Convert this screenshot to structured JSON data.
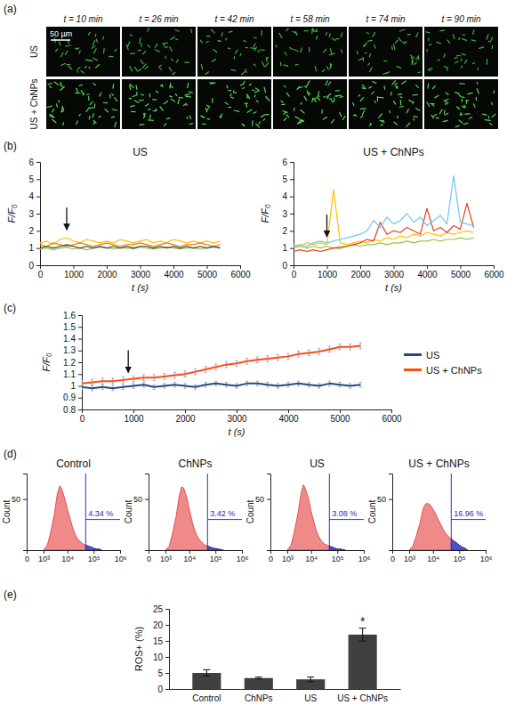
{
  "image_panel": {
    "panel_label": "(a)",
    "columns": [
      "t = 10 min",
      "t = 26 min",
      "t = 42 min",
      "t = 58 min",
      "t = 74 min",
      "t = 90 min"
    ],
    "rows": [
      "US",
      "US + ChNPs"
    ],
    "scale_bar": "50 µm"
  },
  "chart_data": [
    {
      "type": "line",
      "panel_label": "(b)",
      "title": "US",
      "x_label": "t (s)",
      "y_label": "F/F₀",
      "x": [
        0,
        200,
        400,
        600,
        800,
        1000,
        1200,
        1400,
        1600,
        1800,
        2000,
        2200,
        2400,
        2600,
        2800,
        3000,
        3200,
        3400,
        3600,
        3800,
        4000,
        4200,
        4400,
        4600,
        4800,
        5000,
        5200,
        5400
      ],
      "series": [
        {
          "color": "#ffc000",
          "values": [
            1.3,
            1.4,
            1.2,
            1.5,
            1.6,
            1.4,
            1.3,
            1.5,
            1.4,
            1.3,
            1.4,
            1.3,
            1.5,
            1.4,
            1.3,
            1.4,
            1.5,
            1.3,
            1.4,
            1.3,
            1.5,
            1.4,
            1.3,
            1.4,
            1.3,
            1.4,
            1.3,
            1.4
          ]
        },
        {
          "color": "#f07c1c",
          "values": [
            1.2,
            1.1,
            1.3,
            1.2,
            1.1,
            1.2,
            1.3,
            1.2,
            1.1,
            1.2,
            1.3,
            1.2,
            1.1,
            1.2,
            1.2,
            1.3,
            1.2,
            1.1,
            1.2,
            1.3,
            1.2,
            1.1,
            1.2,
            1.2,
            1.3,
            1.2,
            1.1,
            1.2
          ]
        },
        {
          "color": "#92c83e",
          "values": [
            0.95,
            1.0,
            0.9,
            1.0,
            1.05,
            0.95,
            1.0,
            0.9,
            1.0,
            1.05,
            1.0,
            0.95,
            1.0,
            1.0,
            0.95,
            1.05,
            1.0,
            0.95,
            1.0,
            1.05,
            1.0,
            0.95,
            1.0,
            1.0,
            0.95,
            1.0,
            1.05,
            1.0
          ]
        },
        {
          "color": "#404040",
          "values": [
            1.0,
            1.1,
            1.0,
            1.1,
            1.2,
            1.1,
            1.0,
            1.1,
            1.0,
            1.1,
            1.0,
            1.1,
            1.0,
            1.1,
            1.0,
            1.1,
            1.1,
            1.0,
            1.1,
            1.0,
            1.1,
            1.0,
            1.1,
            1.0,
            1.1,
            1.0,
            1.1,
            1.0
          ]
        }
      ],
      "xlim": [
        0,
        6000
      ],
      "xticks": [
        0,
        1000,
        2000,
        3000,
        4000,
        5000,
        6000
      ],
      "ylim": [
        0,
        6
      ],
      "yticks": [
        0,
        1,
        2,
        3,
        4,
        5,
        6
      ],
      "arrow": {
        "x": 800,
        "y": 1.9
      }
    },
    {
      "type": "line",
      "title": "US + ChNPs",
      "x_label": "t (s)",
      "y_label": "F/F₀",
      "x": [
        0,
        200,
        400,
        600,
        800,
        1000,
        1200,
        1400,
        1600,
        1800,
        2000,
        2200,
        2400,
        2600,
        2800,
        3000,
        3200,
        3400,
        3600,
        3800,
        4000,
        4200,
        4400,
        4600,
        4800,
        5000,
        5200,
        5400
      ],
      "series": [
        {
          "color": "#92c83e",
          "values": [
            1.0,
            1.1,
            1.0,
            1.1,
            1.0,
            1.1,
            1.0,
            1.1,
            1.1,
            1.2,
            1.1,
            1.2,
            1.2,
            1.3,
            1.2,
            1.3,
            1.3,
            1.4,
            1.3,
            1.4,
            1.4,
            1.5,
            1.4,
            1.5,
            1.5,
            1.6,
            1.5,
            1.6
          ]
        },
        {
          "color": "#ffc000",
          "values": [
            1.2,
            1.1,
            1.3,
            1.2,
            1.3,
            1.2,
            4.4,
            1.3,
            1.2,
            1.3,
            1.4,
            1.3,
            1.5,
            1.4,
            1.6,
            1.5,
            1.7,
            1.6,
            1.8,
            1.7,
            1.9,
            1.8,
            1.7,
            1.9,
            1.8,
            1.9,
            2.0,
            1.9
          ]
        },
        {
          "color": "#e8401c",
          "values": [
            0.8,
            0.9,
            0.8,
            0.9,
            0.8,
            0.9,
            1.0,
            1.0,
            1.1,
            1.2,
            1.3,
            1.5,
            1.4,
            2.5,
            1.8,
            2.0,
            1.9,
            2.2,
            2.0,
            1.8,
            3.3,
            2.0,
            2.2,
            1.9,
            2.3,
            2.1,
            3.6,
            2.2
          ]
        },
        {
          "color": "#6ec6f0",
          "values": [
            1.1,
            1.2,
            1.1,
            1.3,
            1.4,
            1.3,
            1.4,
            1.5,
            1.6,
            1.7,
            1.8,
            2.0,
            2.6,
            2.2,
            2.8,
            2.4,
            2.6,
            3.0,
            2.5,
            2.8,
            2.3,
            2.6,
            2.9,
            2.4,
            5.2,
            2.5,
            2.4,
            2.3
          ]
        }
      ],
      "xlim": [
        0,
        6000
      ],
      "xticks": [
        0,
        1000,
        2000,
        3000,
        4000,
        5000,
        6000
      ],
      "ylim": [
        0,
        6
      ],
      "yticks": [
        0,
        1,
        2,
        3,
        4,
        5,
        6
      ],
      "arrow": {
        "x": 1000,
        "y": 1.5
      }
    },
    {
      "type": "line",
      "panel_label": "(c)",
      "x_label": "t (s)",
      "y_label": "F/F₀",
      "x": [
        0,
        200,
        400,
        600,
        800,
        1000,
        1200,
        1400,
        1600,
        1800,
        2000,
        2200,
        2400,
        2600,
        2800,
        3000,
        3200,
        3400,
        3600,
        3800,
        4000,
        4200,
        4400,
        4600,
        4800,
        5000,
        5200,
        5400
      ],
      "series": [
        {
          "name": "US",
          "color": "#1f4e79",
          "values": [
            0.99,
            0.98,
            0.99,
            0.98,
            0.99,
            1.0,
            1.01,
            0.99,
            1.0,
            1.01,
            1.0,
            0.99,
            1.01,
            1.02,
            1.01,
            1.0,
            1.02,
            1.02,
            1.01,
            1.0,
            1.01,
            1.02,
            1.01,
            1.0,
            1.02,
            1.01,
            1.0,
            1.01
          ],
          "errors": [
            0.02,
            0.02,
            0.02,
            0.02,
            0.02,
            0.02,
            0.02,
            0.02,
            0.02,
            0.02,
            0.02,
            0.02,
            0.02,
            0.02,
            0.02,
            0.02,
            0.02,
            0.02,
            0.02,
            0.02,
            0.02,
            0.02,
            0.02,
            0.02,
            0.02,
            0.02,
            0.02,
            0.02
          ]
        },
        {
          "name": "US + ChNPs",
          "color": "#ff4d0a",
          "values": [
            1.02,
            1.03,
            1.04,
            1.04,
            1.05,
            1.06,
            1.07,
            1.07,
            1.08,
            1.09,
            1.1,
            1.12,
            1.14,
            1.16,
            1.18,
            1.19,
            1.21,
            1.22,
            1.23,
            1.24,
            1.25,
            1.27,
            1.28,
            1.29,
            1.31,
            1.33,
            1.33,
            1.34
          ],
          "errors": [
            0.025,
            0.025,
            0.025,
            0.025,
            0.025,
            0.025,
            0.025,
            0.025,
            0.025,
            0.025,
            0.025,
            0.025,
            0.025,
            0.025,
            0.025,
            0.025,
            0.025,
            0.025,
            0.025,
            0.025,
            0.025,
            0.025,
            0.025,
            0.025,
            0.025,
            0.025,
            0.025,
            0.025
          ]
        }
      ],
      "xlim": [
        0,
        6000
      ],
      "xticks": [
        0,
        1000,
        2000,
        3000,
        4000,
        5000,
        6000
      ],
      "ylim": [
        0.8,
        1.6
      ],
      "yticks": [
        0.8,
        0.9,
        1,
        1.1,
        1.2,
        1.3,
        1.4,
        1.5,
        1.6
      ],
      "legend": "right",
      "arrow": {
        "x": 900,
        "y": 1.09
      }
    },
    {
      "type": "area",
      "panel_label": "(d)",
      "title": "Control",
      "y_label": "Count",
      "log": "x",
      "x": [
        1000,
        1500,
        2000,
        3000,
        4000,
        5000,
        6000,
        8000,
        10000,
        13000,
        16000,
        20000,
        25000,
        32000,
        40000,
        50000,
        63000,
        80000,
        100000,
        130000,
        160000,
        200000
      ],
      "values": [
        0,
        5,
        15,
        35,
        55,
        63,
        60,
        50,
        40,
        30,
        22,
        15,
        11,
        8,
        6,
        5,
        4,
        3,
        2,
        1,
        1,
        0
      ],
      "color": "#f08a8a",
      "xlim": [
        0,
        1000000
      ],
      "xticks": [
        0,
        {
          "value": 1000,
          "label": "10³"
        },
        {
          "value": 10000,
          "label": "10⁴"
        },
        {
          "value": 100000,
          "label": "10⁵"
        },
        {
          "value": 1000000,
          "label": "10⁶"
        }
      ],
      "ylim": [
        0,
        75
      ],
      "yticks": [
        50
      ],
      "gate": 50000,
      "gate_label": "4.34 %"
    },
    {
      "type": "area",
      "title": "ChNPs",
      "y_label": "Count",
      "log": "x",
      "x": [
        1000,
        1500,
        2000,
        3000,
        4000,
        5000,
        6000,
        8000,
        10000,
        13000,
        16000,
        20000,
        25000,
        32000,
        40000,
        50000,
        63000,
        80000,
        100000,
        130000,
        160000,
        200000
      ],
      "values": [
        0,
        4,
        14,
        33,
        53,
        62,
        61,
        52,
        40,
        28,
        20,
        14,
        10,
        7,
        5,
        4,
        3,
        2,
        1.5,
        1,
        0.5,
        0
      ],
      "color": "#f08a8a",
      "xlim": [
        0,
        1000000
      ],
      "xticks": [
        0,
        {
          "value": 1000,
          "label": "10³"
        },
        {
          "value": 10000,
          "label": "10⁴"
        },
        {
          "value": 100000,
          "label": "10⁵"
        },
        {
          "value": 1000000,
          "label": "10⁶"
        }
      ],
      "ylim": [
        0,
        75
      ],
      "yticks": [
        50
      ],
      "gate": 50000,
      "gate_label": "3.42 %"
    },
    {
      "type": "area",
      "title": "US",
      "y_label": "Count",
      "log": "x",
      "x": [
        1000,
        1500,
        2000,
        3000,
        4000,
        5000,
        6000,
        8000,
        10000,
        13000,
        16000,
        20000,
        25000,
        32000,
        40000,
        50000,
        63000,
        80000,
        100000,
        130000,
        160000,
        200000
      ],
      "values": [
        0,
        5,
        16,
        36,
        56,
        64,
        60,
        50,
        38,
        27,
        19,
        13,
        9,
        6,
        5,
        4,
        3,
        2,
        1,
        1,
        0.5,
        0
      ],
      "color": "#f08a8a",
      "xlim": [
        0,
        1000000
      ],
      "xticks": [
        0,
        {
          "value": 1000,
          "label": "10³"
        },
        {
          "value": 10000,
          "label": "10⁴"
        },
        {
          "value": 100000,
          "label": "10⁵"
        },
        {
          "value": 1000000,
          "label": "10⁶"
        }
      ],
      "ylim": [
        0,
        75
      ],
      "yticks": [
        50
      ],
      "gate": 50000,
      "gate_label": "3.08 %"
    },
    {
      "type": "area",
      "title": "US + ChNPs",
      "y_label": "Count",
      "log": "x",
      "x": [
        1000,
        1500,
        2000,
        3000,
        4000,
        5000,
        6000,
        8000,
        10000,
        13000,
        16000,
        20000,
        25000,
        32000,
        40000,
        50000,
        63000,
        80000,
        100000,
        130000,
        160000,
        200000
      ],
      "values": [
        0,
        4,
        12,
        26,
        40,
        45,
        46,
        44,
        40,
        35,
        30,
        25,
        20,
        16,
        13,
        11,
        9,
        7,
        5,
        3,
        2,
        0.5
      ],
      "color": "#f08a8a",
      "xlim": [
        0,
        1000000
      ],
      "xticks": [
        0,
        {
          "value": 1000,
          "label": "10³"
        },
        {
          "value": 10000,
          "label": "10⁴"
        },
        {
          "value": 100000,
          "label": "10⁵"
        },
        {
          "value": 1000000,
          "label": "10⁶"
        }
      ],
      "ylim": [
        0,
        75
      ],
      "yticks": [
        50
      ],
      "gate": 50000,
      "gate_label": "16.96 %"
    },
    {
      "type": "bar",
      "panel_label": "(e)",
      "y_label": "ROS+ (%)",
      "categories": [
        "Control",
        "ChNPs",
        "US",
        "US + ChNPs"
      ],
      "values": [
        5.0,
        3.4,
        3.0,
        16.96
      ],
      "errors": [
        1.0,
        0.3,
        0.7,
        2.0
      ],
      "color": "#404040",
      "ylim": [
        0,
        25
      ],
      "yticks": [
        0,
        5,
        10,
        15,
        20,
        25
      ],
      "annotations": [
        {
          "text": "*",
          "category": "US + ChNPs"
        }
      ]
    }
  ]
}
